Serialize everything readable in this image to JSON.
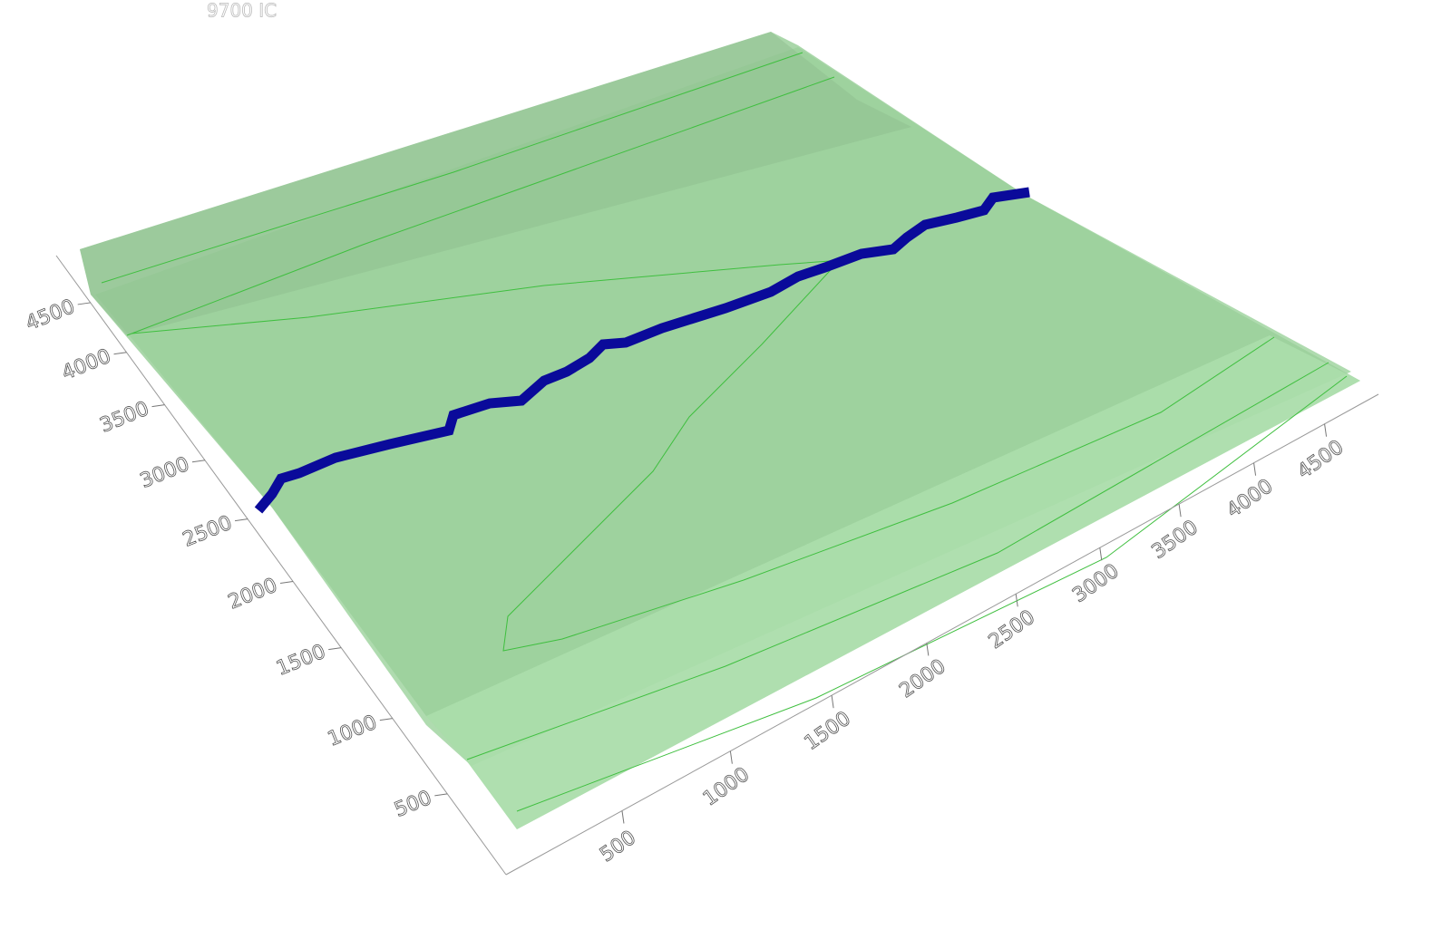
{
  "chart_data": {
    "type": "surface",
    "title": "9700 IC",
    "xlim": [
      0,
      4900
    ],
    "xticks": [
      500,
      1000,
      1500,
      2000,
      2500,
      3000,
      3500,
      4000,
      4500
    ],
    "ylim": [
      0,
      5000
    ],
    "yticks": [
      500,
      1000,
      1500,
      2000,
      2500,
      3000,
      3500,
      4000,
      4500
    ],
    "color": "#8fce8f"
  }
}
